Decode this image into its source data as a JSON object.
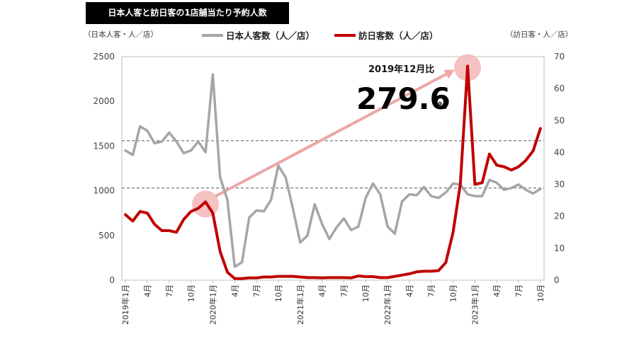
{
  "title": "日本人客と訪日客の1店舗当たり予約人数",
  "left_unit": "（日本人客・人／店）",
  "right_unit": "（訪日客・人／店）",
  "colors": {
    "japanese": "#a6a6a6",
    "visitors": "#c00000",
    "highlight": "#f4b6b6",
    "arrow": "#eba7a7"
  },
  "annotation": {
    "label": "2019年12月比",
    "value": "279.6",
    "unit": "%"
  },
  "chart_data": {
    "type": "line",
    "title": "日本人客と訪日客の1店舗当たり予約人数",
    "x": [
      "2019-01",
      "2019-02",
      "2019-03",
      "2019-04",
      "2019-05",
      "2019-06",
      "2019-07",
      "2019-08",
      "2019-09",
      "2019-10",
      "2019-11",
      "2019-12",
      "2020-01",
      "2020-02",
      "2020-03",
      "2020-04",
      "2020-05",
      "2020-06",
      "2020-07",
      "2020-08",
      "2020-09",
      "2020-10",
      "2020-11",
      "2020-12",
      "2021-01",
      "2021-02",
      "2021-03",
      "2021-04",
      "2021-05",
      "2021-06",
      "2021-07",
      "2021-08",
      "2021-09",
      "2021-10",
      "2021-11",
      "2021-12",
      "2022-01",
      "2022-02",
      "2022-03",
      "2022-04",
      "2022-05",
      "2022-06",
      "2022-07",
      "2022-08",
      "2022-09",
      "2022-10",
      "2022-11",
      "2022-12",
      "2023-01",
      "2023-02",
      "2023-03",
      "2023-04",
      "2023-05",
      "2023-06",
      "2023-07",
      "2023-08",
      "2023-09",
      "2023-10"
    ],
    "x_tick_labels": [
      "2019年1月",
      "4月",
      "7月",
      "10月",
      "2020年1月",
      "4月",
      "7月",
      "10月",
      "2021年1月",
      "4月",
      "7月",
      "10月",
      "2022年1月",
      "4月",
      "7月",
      "10月",
      "2023年1月",
      "4月",
      "7月",
      "10月"
    ],
    "series": [
      {
        "name": "日本人客数（人／店）",
        "axis": "left",
        "values": [
          1450,
          1400,
          1720,
          1670,
          1530,
          1550,
          1650,
          1550,
          1420,
          1450,
          1550,
          1430,
          2300,
          1150,
          900,
          150,
          200,
          700,
          780,
          770,
          900,
          1280,
          1150,
          800,
          420,
          500,
          850,
          630,
          460,
          590,
          690,
          560,
          600,
          920,
          1080,
          960,
          600,
          520,
          880,
          960,
          950,
          1040,
          940,
          920,
          980,
          1080,
          1070,
          960,
          940,
          940,
          1120,
          1090,
          1010,
          1030,
          1070,
          1010,
          970,
          1020
        ]
      },
      {
        "name": "訪日客数（人／店）",
        "axis": "right",
        "values": [
          20.5,
          18.5,
          21.5,
          21,
          17.5,
          15.5,
          15.5,
          15,
          19,
          21.5,
          22.5,
          24.5,
          21,
          9,
          2.5,
          0.5,
          0.5,
          0.7,
          0.7,
          1,
          1,
          1.2,
          1.2,
          1.2,
          1,
          0.8,
          0.8,
          0.7,
          0.8,
          0.8,
          0.8,
          0.7,
          1.3,
          1.1,
          1.1,
          0.8,
          0.8,
          1.2,
          1.6,
          2,
          2.6,
          2.8,
          2.8,
          3,
          5.5,
          15,
          30,
          67,
          30,
          30.5,
          39.5,
          36,
          35.5,
          34.5,
          35.5,
          37.5,
          40.5,
          47.5
        ]
      }
    ],
    "ylim_left": [
      0,
      2500
    ],
    "yticks_left": [
      0,
      500,
      1000,
      1500,
      2000,
      2500
    ],
    "ylim_right": [
      0,
      70
    ],
    "yticks_right": [
      0,
      10,
      20,
      30,
      40,
      50,
      60,
      70
    ],
    "reference_lines_left": [
      1560,
      1030
    ],
    "grid": false,
    "legend_position": "top"
  }
}
